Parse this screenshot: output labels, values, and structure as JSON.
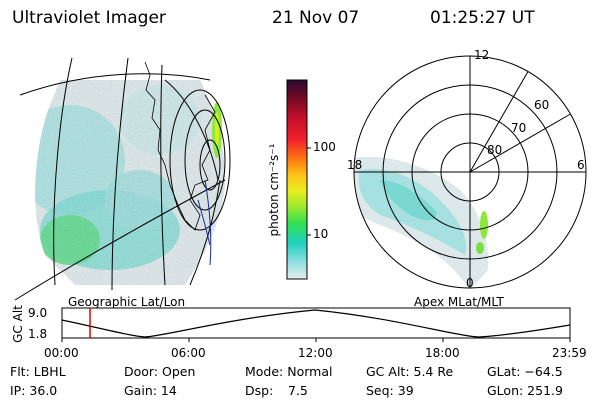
{
  "header": {
    "instrument": "Ultraviolet Imager",
    "date": "21 Nov 07",
    "time": "01:25:27 UT"
  },
  "geo_panel": {
    "label": "Geographic Lat/Lon"
  },
  "colorbar": {
    "unit_label": "photon cm⁻²s⁻¹",
    "ticks": [
      "100",
      "10"
    ],
    "colors": [
      "#2a0a30",
      "#7a0a20",
      "#c8102a",
      "#f0202a",
      "#ff7a10",
      "#ffc41a",
      "#e8ee20",
      "#9ae830",
      "#30e050",
      "#20d0c0",
      "#80dcdc",
      "#d0e8e8"
    ]
  },
  "polar_panel": {
    "label": "Apex MLat/MLT",
    "mlt_labels": [
      "12",
      "18",
      "6",
      "0"
    ],
    "lat_labels": [
      "60",
      "70",
      "80"
    ]
  },
  "altitude_plot": {
    "ylabel": "GC Alt",
    "yticks": [
      "9.0",
      "1.8"
    ],
    "xticks": [
      "00:00",
      "06:00",
      "12:00",
      "18:00",
      "23:59"
    ],
    "marker_color": "#dd0000"
  },
  "info": {
    "row1": {
      "flt": "Flt: LBHL",
      "door": "Door: Open",
      "mode": "Mode: Normal",
      "gcalt": "GC Alt: 5.4 Re",
      "glat": "GLat: −64.5"
    },
    "row2": {
      "ip": "IP: 36.0",
      "gain": "Gain: 14",
      "dsp_label": "Dsp:",
      "dsp_value": "7.5",
      "seq": "Seq: 39",
      "glon": "GLon: 251.9"
    }
  }
}
